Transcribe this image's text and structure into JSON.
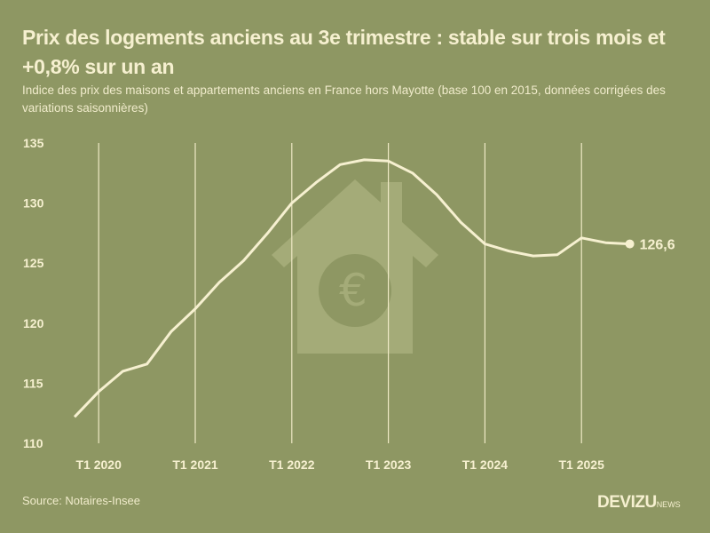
{
  "header": {
    "title": "Prix des logements anciens au 3e trimestre : stable sur trois mois et +0,8% sur un an",
    "subtitle": "Indice des prix des maisons et appartements anciens en France hors Mayotte (base 100 en 2015, données corrigées des variations saisonnières)"
  },
  "footer": {
    "source": "Source: Notaires-Insee",
    "logo_main": "DEVIZU",
    "logo_suffix": "NEWS"
  },
  "colors": {
    "background": "#8e9763",
    "line": "#f6f0d0",
    "house_icon": "#a4ab78"
  },
  "chart_data": {
    "type": "line",
    "title": "Prix des logements anciens au 3e trimestre : stable sur trois mois et +0,8% sur un an",
    "subtitle": "Indice des prix des maisons et appartements anciens en France hors Mayotte (base 100 en 2015, données corrigées des variations saisonnières)",
    "xlabel": "",
    "ylabel": "",
    "ylim": [
      110,
      135
    ],
    "yticks": [
      110,
      115,
      120,
      125,
      130,
      135
    ],
    "xtick_labels": [
      "T1 2020",
      "T1 2021",
      "T1 2022",
      "T1 2023",
      "T1 2024",
      "T1 2025"
    ],
    "grid": "vertical lines at T1 of each year",
    "end_label": "126,6",
    "x": [
      "T4 2019",
      "T1 2020",
      "T2 2020",
      "T3 2020",
      "T4 2020",
      "T1 2021",
      "T2 2021",
      "T3 2021",
      "T4 2021",
      "T1 2022",
      "T2 2022",
      "T3 2022",
      "T4 2022",
      "T1 2023",
      "T2 2023",
      "T3 2023",
      "T4 2023",
      "T1 2024",
      "T2 2024",
      "T3 2024",
      "T4 2024",
      "T1 2025",
      "T2 2025",
      "T3 2025"
    ],
    "series": [
      {
        "name": "Indice des prix des logements anciens",
        "values": [
          112.2,
          114.3,
          116.0,
          116.6,
          119.3,
          121.2,
          123.4,
          125.2,
          127.5,
          130.0,
          131.7,
          133.2,
          133.6,
          133.5,
          132.5,
          130.7,
          128.4,
          126.6,
          126.0,
          125.6,
          125.7,
          127.1,
          126.7,
          126.6
        ]
      }
    ],
    "source": "Source: Notaires-Insee"
  }
}
